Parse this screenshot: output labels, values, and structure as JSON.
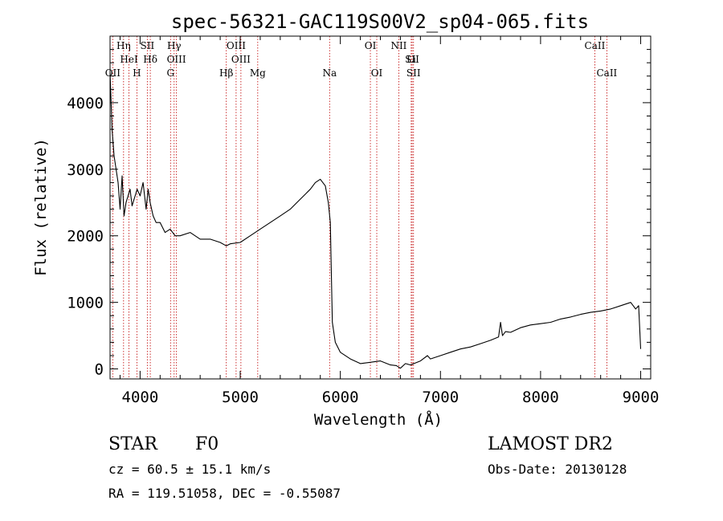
{
  "chart_data": {
    "type": "line",
    "title": "spec-56321-GAC119S00V2_sp04-065.fits",
    "xlabel": "Wavelength (Å)",
    "ylabel": "Flux (relative)",
    "xlim": [
      3700,
      9100
    ],
    "ylim": [
      -150,
      5000
    ],
    "xticks": [
      4000,
      5000,
      6000,
      7000,
      8000,
      9000
    ],
    "yticks": [
      0,
      1000,
      2000,
      3000,
      4000
    ],
    "xtick_labels": [
      "4000",
      "5000",
      "6000",
      "7000",
      "8000",
      "9000"
    ],
    "ytick_labels": [
      "0",
      "1000",
      "2000",
      "3000",
      "4000"
    ],
    "line_color": "#000000",
    "marker_color": "#c00000",
    "series": [
      {
        "x": [
          3700,
          3720,
          3740,
          3760,
          3780,
          3800,
          3820,
          3840,
          3860,
          3880,
          3900,
          3920,
          3950,
          3970,
          4000,
          4030,
          4060,
          4080,
          4100,
          4130,
          4160,
          4200,
          4250,
          4300,
          4350,
          4400,
          4500,
          4600,
          4700,
          4800,
          4860,
          4900,
          5000,
          5100,
          5200,
          5300,
          5400,
          5500,
          5600,
          5700,
          5750,
          5800,
          5850,
          5880,
          5900,
          5920,
          5950,
          6000,
          6100,
          6200,
          6300,
          6400,
          6500,
          6560,
          6600,
          6650,
          6700,
          6800,
          6870,
          6900,
          7000,
          7100,
          7200,
          7300,
          7400,
          7500,
          7580,
          7600,
          7620,
          7650,
          7700,
          7800,
          7900,
          8000,
          8100,
          8200,
          8300,
          8400,
          8500,
          8600,
          8700,
          8800,
          8900,
          8950,
          8980,
          9000
        ],
        "y": [
          4450,
          3600,
          3200,
          3000,
          2800,
          2400,
          2900,
          2300,
          2500,
          2600,
          2700,
          2450,
          2600,
          2700,
          2600,
          2800,
          2400,
          2700,
          2500,
          2300,
          2200,
          2200,
          2050,
          2100,
          2000,
          2000,
          2050,
          1950,
          1950,
          1900,
          1850,
          1880,
          1900,
          2000,
          2100,
          2200,
          2300,
          2400,
          2550,
          2700,
          2800,
          2850,
          2750,
          2500,
          2200,
          700,
          400,
          250,
          150,
          80,
          100,
          120,
          60,
          50,
          10,
          80,
          60,
          120,
          200,
          150,
          200,
          250,
          300,
          330,
          380,
          430,
          480,
          700,
          500,
          560,
          550,
          620,
          660,
          680,
          700,
          750,
          780,
          820,
          850,
          870,
          900,
          950,
          1000,
          900,
          950,
          300
        ]
      }
    ],
    "spectral_lines_top": [
      {
        "label": "HeI",
        "x": 3889
      },
      {
        "label": "Hη",
        "x": 3835
      },
      {
        "label": "Hδ",
        "x": 4102
      },
      {
        "label": "SII",
        "x": 4072
      },
      {
        "label": "OIII",
        "x": 4363
      },
      {
        "label": "Hγ",
        "x": 4340
      },
      {
        "label": "OIII",
        "x": 4959
      },
      {
        "label": "OIII",
        "x": 5007
      },
      {
        "label": "OI",
        "x": 6300
      },
      {
        "label": "Li",
        "x": 6708
      },
      {
        "label": "NII",
        "x": 6584
      },
      {
        "label": "SII",
        "x": 6717
      },
      {
        "label": "CaII",
        "x": 8542
      }
    ],
    "spectral_lines_bottom": [
      {
        "label": "OII",
        "x": 3727
      },
      {
        "label": "H",
        "x": 3968
      },
      {
        "label": "G",
        "x": 4304
      },
      {
        "label": "Hβ",
        "x": 4861
      },
      {
        "label": "Mg",
        "x": 5175
      },
      {
        "label": "Na",
        "x": 5893
      },
      {
        "label": "OI",
        "x": 6364
      },
      {
        "label": "SII",
        "x": 6731
      },
      {
        "label": "CaII",
        "x": 8662
      }
    ]
  },
  "info": {
    "class": "STAR",
    "subclass": "F0",
    "survey": "LAMOST DR2",
    "cz": "cz = 60.5 ± 15.1 km/s",
    "obs_date": "Obs-Date: 20130128",
    "radec": "RA = 119.51058, DEC =  -0.55087"
  }
}
